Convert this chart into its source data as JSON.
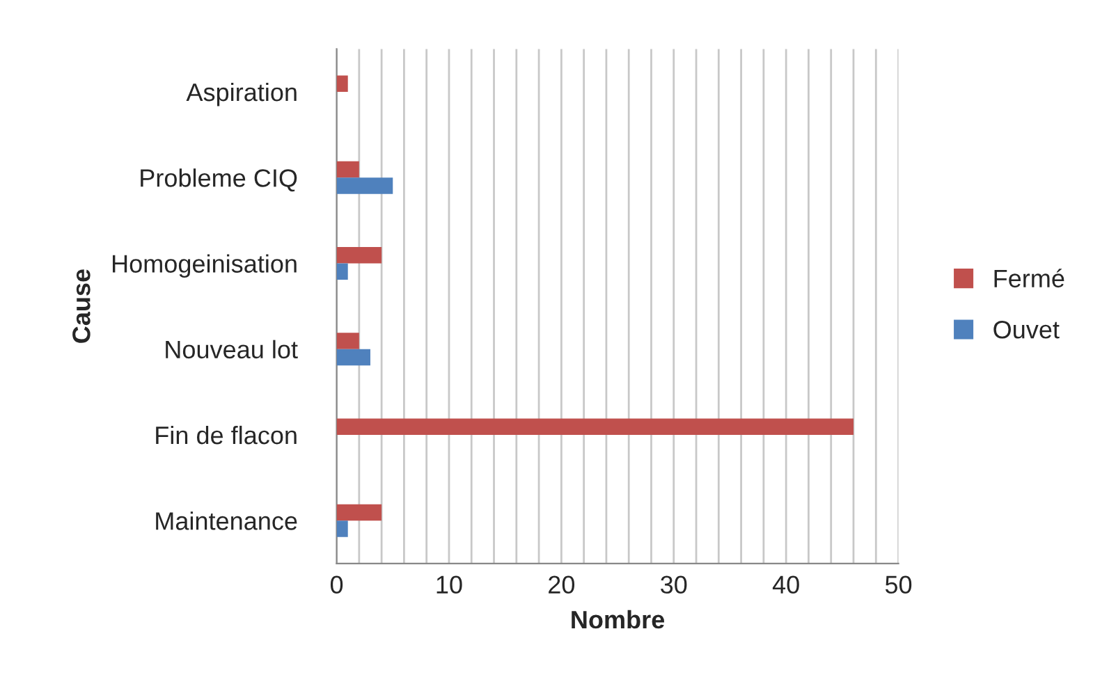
{
  "chart_data": {
    "type": "bar",
    "orientation": "horizontal",
    "xlabel": "Nombre",
    "ylabel": "Cause",
    "categories": [
      "Aspiration",
      "Probleme CIQ",
      "Homogeinisation",
      "Nouveau lot",
      "Fin de flacon",
      "Maintenance"
    ],
    "series": [
      {
        "name": "Fermé",
        "color": "#c0504d",
        "values": [
          1,
          2,
          4,
          2,
          46,
          4
        ]
      },
      {
        "name": "Ouvet",
        "color": "#4f81bd",
        "values": [
          null,
          5,
          1,
          3,
          null,
          1
        ]
      }
    ],
    "xlim": [
      0,
      50
    ],
    "xticks": [
      0,
      {
        "value": 2,
        "label": null
      },
      {
        "value": 4,
        "label": null
      },
      {
        "value": 6,
        "label": null
      },
      {
        "value": 8,
        "label": null
      },
      10,
      {
        "value": 12,
        "label": null
      },
      {
        "value": 14,
        "label": null
      },
      {
        "value": 16,
        "label": null
      },
      {
        "value": 18,
        "label": null
      },
      20,
      {
        "value": 22,
        "label": null
      },
      {
        "value": 24,
        "label": null
      },
      {
        "value": 26,
        "label": null
      },
      {
        "value": 28,
        "label": null
      },
      30,
      {
        "value": 32,
        "label": null
      },
      {
        "value": 34,
        "label": null
      },
      {
        "value": 36,
        "label": null
      },
      {
        "value": 38,
        "label": null
      },
      40,
      {
        "value": 42,
        "label": null
      },
      {
        "value": 44,
        "label": null
      },
      {
        "value": 46,
        "label": null
      },
      {
        "value": 48,
        "label": null
      },
      50
    ],
    "grid": "x",
    "legend": "right"
  }
}
